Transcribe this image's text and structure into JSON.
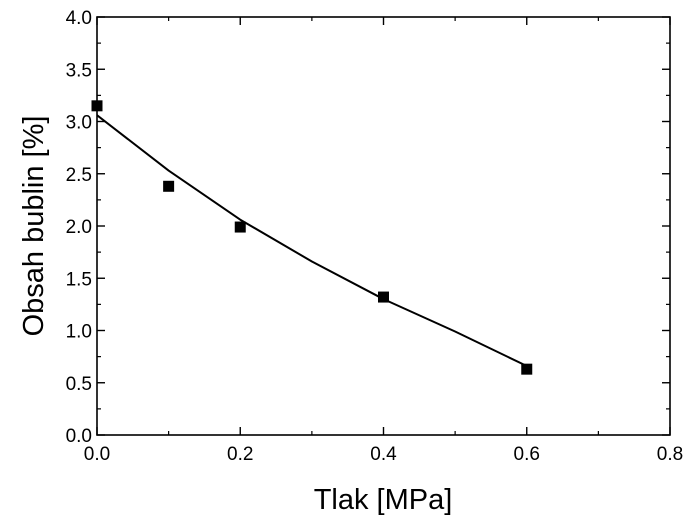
{
  "chart_data": {
    "type": "scatter",
    "title": "",
    "xlabel": "Tlak [MPa]",
    "ylabel": "Obsah bublin [%]",
    "xlim": [
      0.0,
      0.8
    ],
    "ylim": [
      0.0,
      4.0
    ],
    "x_ticks": [
      "0.0",
      "0.2",
      "0.4",
      "0.6",
      "0.8"
    ],
    "y_ticks": [
      "0.0",
      "0.5",
      "1.0",
      "1.5",
      "2.0",
      "2.5",
      "3.0",
      "3.5",
      "4.0"
    ],
    "grid": false,
    "legend": "none",
    "series": [
      {
        "marker": "square",
        "color": "#000000",
        "x": [
          0.0,
          0.1,
          0.2,
          0.4,
          0.6
        ],
        "y": [
          3.15,
          2.38,
          1.99,
          1.32,
          0.63
        ]
      }
    ],
    "fit_curve": {
      "style": "solid line",
      "color": "#000000",
      "x": [
        0.0,
        0.1,
        0.2,
        0.3,
        0.4,
        0.5,
        0.6
      ],
      "y": [
        3.06,
        2.53,
        2.06,
        1.66,
        1.3,
        0.99,
        0.66
      ]
    }
  }
}
